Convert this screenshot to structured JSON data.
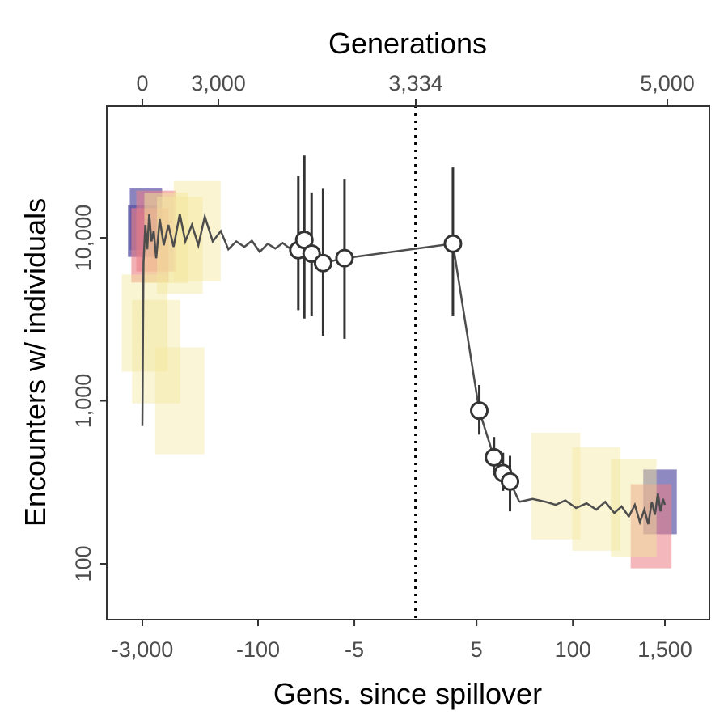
{
  "chart_data": {
    "type": "scatter",
    "title": "",
    "top_axis": {
      "title": "Generations",
      "ticks": [
        {
          "label": "0",
          "value": -3000
        },
        {
          "label": "3,000",
          "value": -300
        },
        {
          "label": "3,334",
          "value": 0
        },
        {
          "label": "5,000",
          "value": 1666
        }
      ]
    },
    "x_axis": {
      "title": "Gens. since spillover",
      "scale": "symmetric-log",
      "ticks": [
        {
          "label": "-3,000",
          "value": -3000
        },
        {
          "label": "-100",
          "value": -100
        },
        {
          "label": "-5",
          "value": -5
        },
        {
          "label": "5",
          "value": 5
        },
        {
          "label": "100",
          "value": 100
        },
        {
          "label": "1,500",
          "value": 1500
        }
      ],
      "spillover_line": 0,
      "xlim": [
        -5000,
        3000
      ]
    },
    "y_axis": {
      "title": "Encounters w/ individuals",
      "scale": "log",
      "ticks": [
        {
          "label": "100",
          "value": 100
        },
        {
          "label": "1,000",
          "value": 1000
        },
        {
          "label": "10,000",
          "value": 10000
        }
      ],
      "ylim": [
        45,
        40000
      ]
    },
    "grid": false,
    "colors": {
      "density_low": "#f3e79b",
      "density_mid": "#eb7f86",
      "density_high": "#5c53a5",
      "trace": "#4d4d4d",
      "point_fill": "#ffffff",
      "point_stroke": "#333333",
      "errorbar": "#333333"
    },
    "points": [
      {
        "x": -30,
        "y": 8400,
        "low": 3600,
        "high": 24000
      },
      {
        "x": -25,
        "y": 9700,
        "low": 3200,
        "high": 32000
      },
      {
        "x": -20,
        "y": 8000,
        "low": 3300,
        "high": 19000
      },
      {
        "x": -14,
        "y": 7000,
        "low": 2500,
        "high": 20000
      },
      {
        "x": -7,
        "y": 7500,
        "low": 2400,
        "high": 23000
      },
      {
        "x": 2,
        "y": 9200,
        "low": 3300,
        "high": 27000
      },
      {
        "x": 5.5,
        "y": 870,
        "low": 620,
        "high": 1250
      },
      {
        "x": 9,
        "y": 450,
        "low": 350,
        "high": 600
      },
      {
        "x": 12,
        "y": 360,
        "low": 280,
        "high": 480
      },
      {
        "x": 15,
        "y": 320,
        "low": 210,
        "high": 460
      }
    ],
    "trace_segments": [
      [
        [
          -3000,
          700
        ],
        [
          -2900,
          7000
        ],
        [
          -2750,
          12000
        ],
        [
          -2600,
          8500
        ],
        [
          -2450,
          14000
        ],
        [
          -2300,
          9500
        ],
        [
          -2150,
          11000
        ],
        [
          -2000,
          7500
        ],
        [
          -1800,
          13000
        ],
        [
          -1600,
          9000
        ],
        [
          -1400,
          12000
        ],
        [
          -1200,
          8800
        ],
        [
          -1000,
          14000
        ],
        [
          -850,
          9500
        ],
        [
          -700,
          12000
        ],
        [
          -580,
          9000
        ],
        [
          -480,
          13500
        ],
        [
          -380,
          9500
        ],
        [
          -300,
          11000
        ],
        [
          -240,
          8500
        ],
        [
          -190,
          9500
        ],
        [
          -150,
          8800
        ],
        [
          -120,
          9600
        ],
        [
          -95,
          8200
        ],
        [
          -75,
          9200
        ],
        [
          -60,
          8600
        ],
        [
          -48,
          9300
        ],
        [
          -40,
          8700
        ],
        [
          -33,
          9100
        ]
      ],
      [
        [
          20,
          240
        ],
        [
          30,
          250
        ],
        [
          45,
          240
        ],
        [
          60,
          230
        ],
        [
          80,
          245
        ],
        [
          110,
          220
        ],
        [
          150,
          235
        ],
        [
          200,
          215
        ],
        [
          260,
          240
        ],
        [
          340,
          205
        ],
        [
          420,
          225
        ],
        [
          520,
          195
        ],
        [
          620,
          230
        ],
        [
          720,
          180
        ],
        [
          820,
          215
        ],
        [
          920,
          175
        ],
        [
          1020,
          240
        ],
        [
          1120,
          200
        ],
        [
          1220,
          270
        ],
        [
          1320,
          210
        ],
        [
          1420,
          250
        ],
        [
          1500,
          230
        ]
      ]
    ],
    "density_cells": [
      {
        "x": -3000,
        "y": 11000,
        "level": 0.95
      },
      {
        "x": -2700,
        "y": 13000,
        "level": 0.8
      },
      {
        "x": -2400,
        "y": 9000,
        "level": 0.6
      },
      {
        "x": -2000,
        "y": 11000,
        "level": 0.5
      },
      {
        "x": -1500,
        "y": 10000,
        "level": 0.35
      },
      {
        "x": -1000,
        "y": 9000,
        "level": 0.25
      },
      {
        "x": -600,
        "y": 11000,
        "level": 0.2
      },
      {
        "x": -2800,
        "y": 3000,
        "level": 0.25
      },
      {
        "x": -2000,
        "y": 2000,
        "level": 0.15
      },
      {
        "x": -1000,
        "y": 1000,
        "level": 0.1
      },
      {
        "x": 1300,
        "y": 240,
        "level": 0.75
      },
      {
        "x": 1000,
        "y": 170,
        "level": 0.45
      },
      {
        "x": 600,
        "y": 220,
        "level": 0.25
      },
      {
        "x": 200,
        "y": 250,
        "level": 0.15
      },
      {
        "x": 60,
        "y": 300,
        "level": 0.1
      }
    ]
  }
}
